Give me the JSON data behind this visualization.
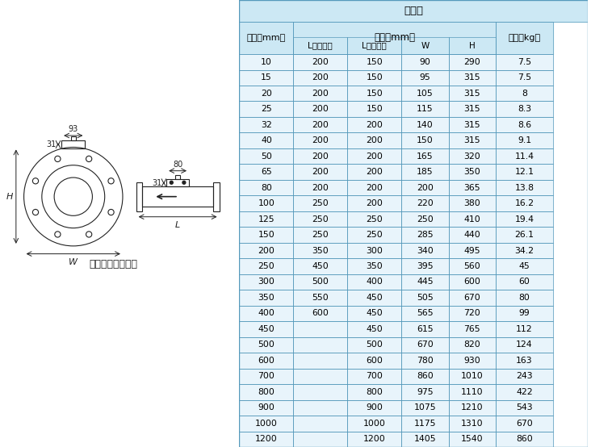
{
  "title": "分体式",
  "subtitle_col1": "口径（mm）",
  "subtitle_col2_merged": "尺寸（mm）",
  "col_headers": [
    "口径（mm）",
    "L（四氟）",
    "L（橡胶）",
    "W",
    "H",
    "重量（kg）"
  ],
  "rows": [
    [
      "10",
      "200",
      "150",
      "90",
      "290",
      "7.5"
    ],
    [
      "15",
      "200",
      "150",
      "95",
      "315",
      "7.5"
    ],
    [
      "20",
      "200",
      "150",
      "105",
      "315",
      "8"
    ],
    [
      "25",
      "200",
      "150",
      "115",
      "315",
      "8.3"
    ],
    [
      "32",
      "200",
      "200",
      "140",
      "315",
      "8.6"
    ],
    [
      "40",
      "200",
      "200",
      "150",
      "315",
      "9.1"
    ],
    [
      "50",
      "200",
      "200",
      "165",
      "320",
      "11.4"
    ],
    [
      "65",
      "200",
      "200",
      "185",
      "350",
      "12.1"
    ],
    [
      "80",
      "200",
      "200",
      "200",
      "365",
      "13.8"
    ],
    [
      "100",
      "250",
      "200",
      "220",
      "380",
      "16.2"
    ],
    [
      "125",
      "250",
      "250",
      "250",
      "410",
      "19.4"
    ],
    [
      "150",
      "250",
      "250",
      "285",
      "440",
      "26.1"
    ],
    [
      "200",
      "350",
      "300",
      "340",
      "495",
      "34.2"
    ],
    [
      "250",
      "450",
      "350",
      "395",
      "560",
      "45"
    ],
    [
      "300",
      "500",
      "400",
      "445",
      "600",
      "60"
    ],
    [
      "350",
      "550",
      "450",
      "505",
      "670",
      "80"
    ],
    [
      "400",
      "600",
      "450",
      "565",
      "720",
      "99"
    ],
    [
      "450",
      "",
      "450",
      "615",
      "765",
      "112"
    ],
    [
      "500",
      "",
      "500",
      "670",
      "820",
      "124"
    ],
    [
      "600",
      "",
      "600",
      "780",
      "930",
      "163"
    ],
    [
      "700",
      "",
      "700",
      "860",
      "1010",
      "243"
    ],
    [
      "800",
      "",
      "800",
      "975",
      "1110",
      "422"
    ],
    [
      "900",
      "",
      "900",
      "1075",
      "1210",
      "543"
    ],
    [
      "1000",
      "",
      "1000",
      "1175",
      "1310",
      "670"
    ],
    [
      "1200",
      "",
      "1200",
      "1405",
      "1540",
      "860"
    ]
  ],
  "bg_color": "#cce8f4",
  "header_bg": "#cce8f4",
  "cell_bg_even": "#e8f4fb",
  "cell_bg_odd": "#ffffff",
  "border_color": "#5599bb",
  "text_color": "#000000",
  "diagram_label": "法兰形（分体型）",
  "dim_93": "93",
  "dim_80": "80",
  "dim_31_left": "31",
  "dim_31_right": "31",
  "dim_H": "H",
  "dim_W": "W",
  "dim_L": "L"
}
